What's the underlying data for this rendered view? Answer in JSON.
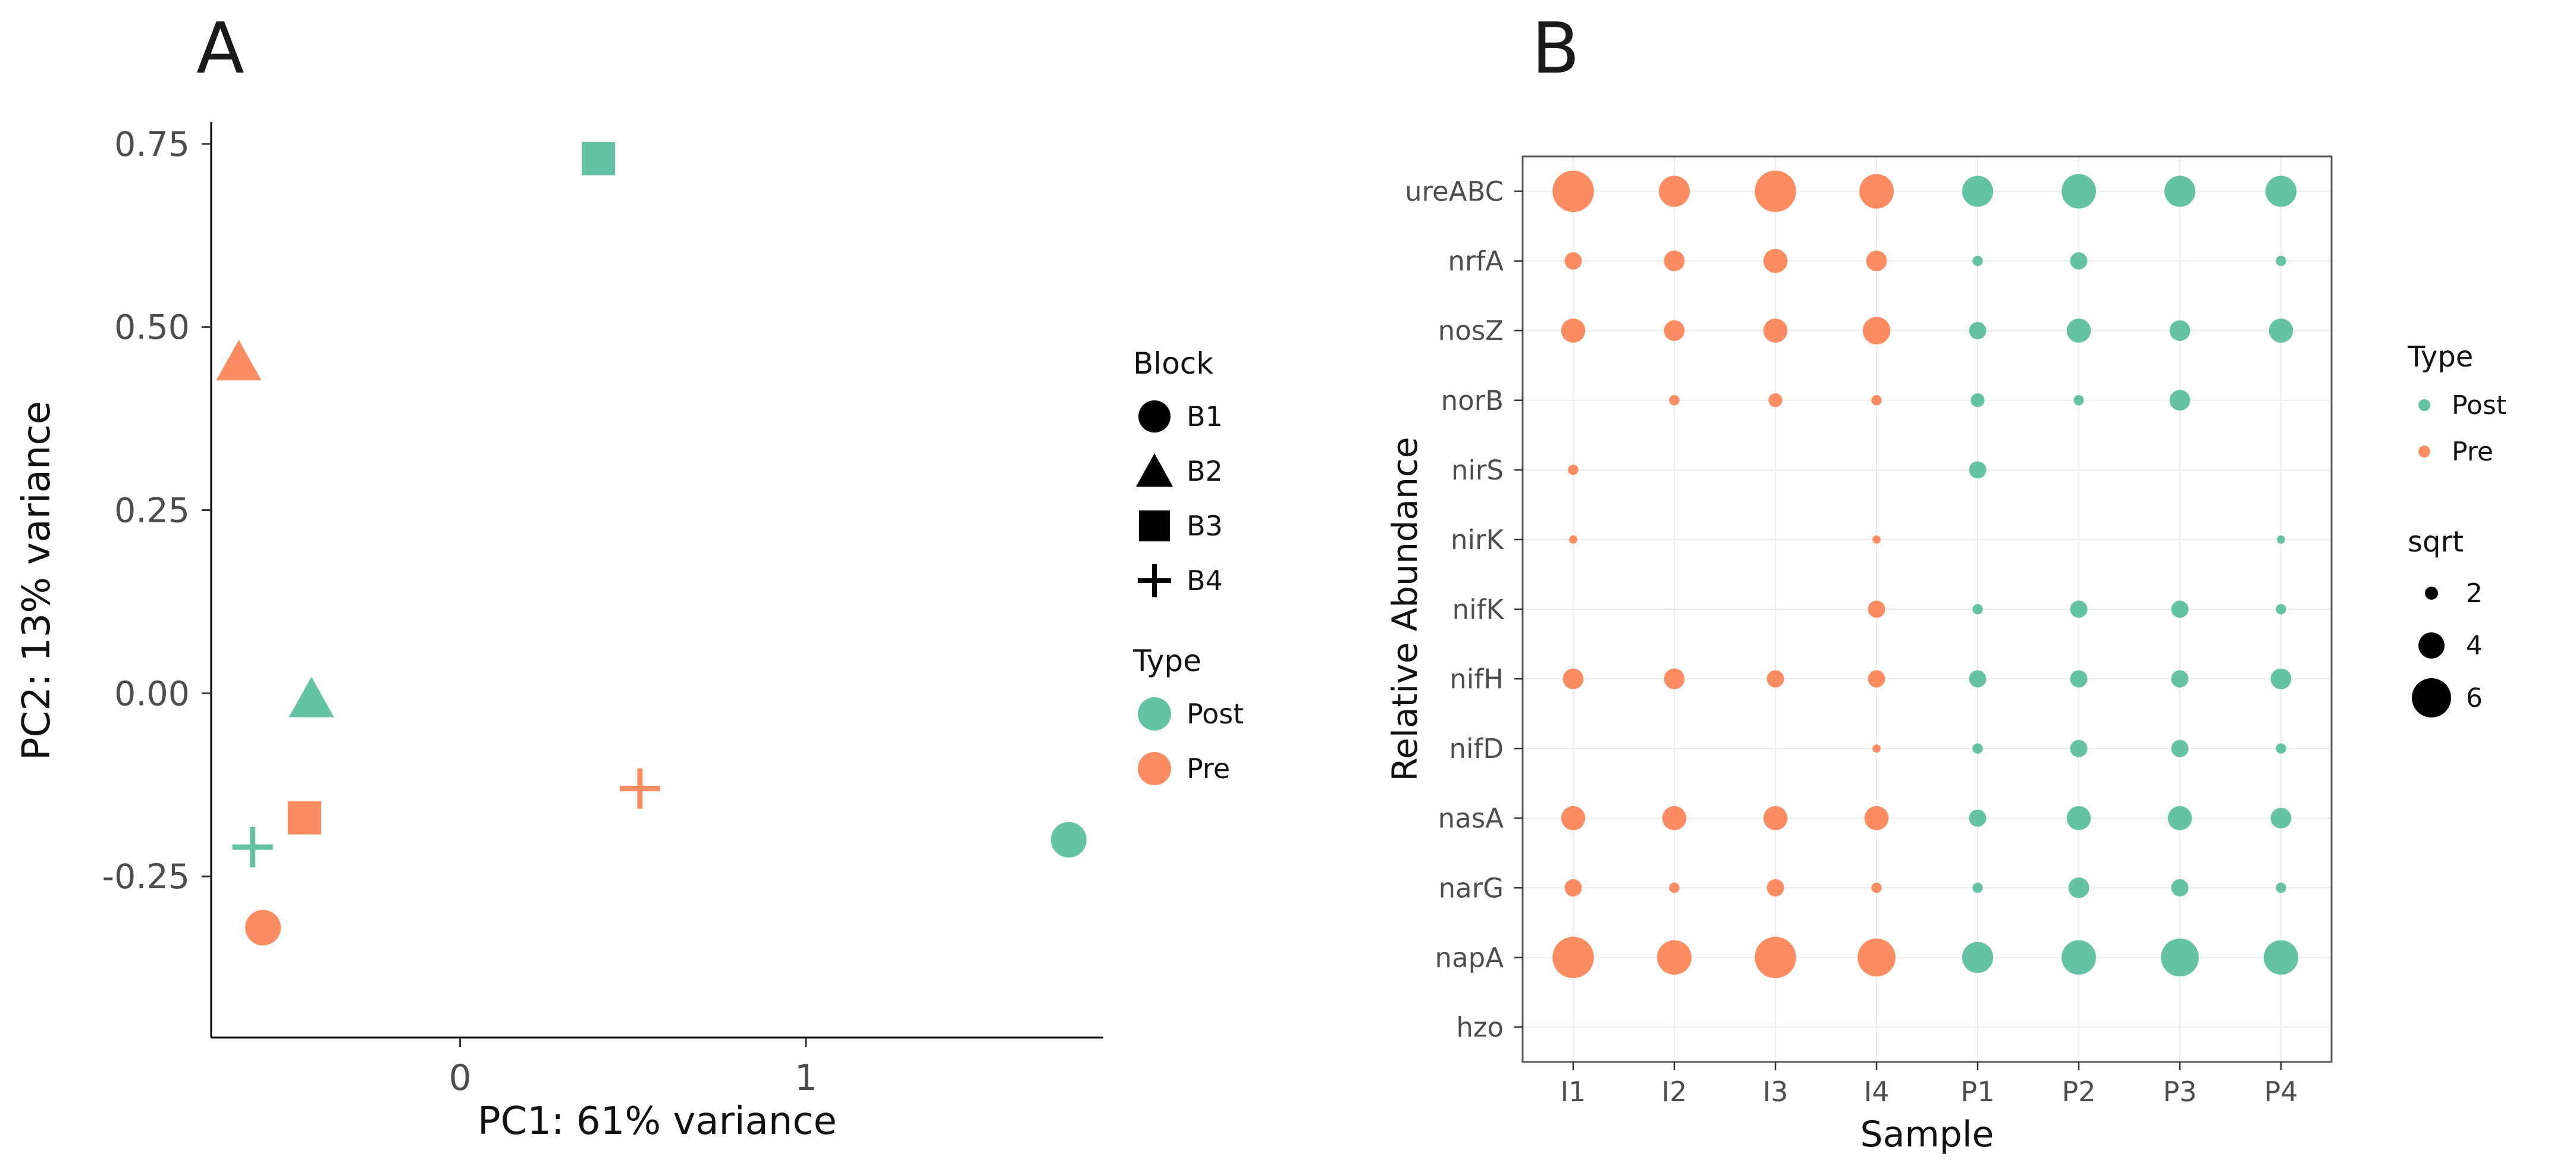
{
  "colors": {
    "post": "#66C2A5",
    "pre": "#FC8D62",
    "marker_black": "#000000",
    "axis_text": "#4d4d4d",
    "axis_line": "#000000",
    "grid": "#ececec",
    "panel_border": "#595959",
    "background": "#ffffff"
  },
  "chart_data": [
    {
      "id": "panel-a",
      "type": "scatter",
      "panel_label": "A",
      "xlabel": "PC1: 61% variance",
      "ylabel": "PC2: 13% variance",
      "xlim": [
        -0.72,
        1.86
      ],
      "ylim": [
        -0.47,
        0.78
      ],
      "xticks": [
        "0",
        "1"
      ],
      "xtick_values": [
        0,
        1
      ],
      "yticks": [
        "0.75",
        "0.50",
        "0.25",
        "0.00",
        "-0.25"
      ],
      "ytick_values": [
        0.75,
        0.5,
        0.25,
        0.0,
        -0.25
      ],
      "grid": false,
      "legend_position": "right",
      "color_by": "Type",
      "shape_by": "Block",
      "points": [
        {
          "x": -0.64,
          "y": 0.45,
          "type": "Pre",
          "block": "B2",
          "shape": "triangle"
        },
        {
          "x": 0.4,
          "y": 0.73,
          "type": "Post",
          "block": "B3",
          "shape": "square"
        },
        {
          "x": -0.43,
          "y": -0.01,
          "type": "Post",
          "block": "B2",
          "shape": "triangle"
        },
        {
          "x": -0.45,
          "y": -0.17,
          "type": "Pre",
          "block": "B3",
          "shape": "square"
        },
        {
          "x": -0.6,
          "y": -0.21,
          "type": "Post",
          "block": "B4",
          "shape": "plus"
        },
        {
          "x": 0.52,
          "y": -0.13,
          "type": "Pre",
          "block": "B4",
          "shape": "plus"
        },
        {
          "x": 1.76,
          "y": -0.2,
          "type": "Post",
          "block": "B1",
          "shape": "circle"
        },
        {
          "x": -0.57,
          "y": -0.32,
          "type": "Pre",
          "block": "B1",
          "shape": "circle"
        }
      ],
      "legends": [
        {
          "title": "Block",
          "items": [
            {
              "label": "B1",
              "shape": "circle"
            },
            {
              "label": "B2",
              "shape": "triangle"
            },
            {
              "label": "B3",
              "shape": "square"
            },
            {
              "label": "B4",
              "shape": "plus"
            }
          ]
        },
        {
          "title": "Type",
          "items": [
            {
              "label": "Post",
              "color": "#66C2A5"
            },
            {
              "label": "Pre",
              "color": "#FC8D62"
            }
          ]
        }
      ]
    },
    {
      "id": "panel-b",
      "type": "bubble",
      "panel_label": "B",
      "xlabel": "Sample",
      "ylabel": "Relative Abundance",
      "grid": true,
      "legend_position": "right",
      "samples": [
        "I1",
        "I2",
        "I3",
        "I4",
        "P1",
        "P2",
        "P3",
        "P4"
      ],
      "sample_types": [
        "Pre",
        "Pre",
        "Pre",
        "Pre",
        "Post",
        "Post",
        "Post",
        "Post"
      ],
      "genes": [
        "ureABC",
        "nrfA",
        "nosZ",
        "norB",
        "nirS",
        "nirK",
        "nifK",
        "nifH",
        "nifD",
        "nasA",
        "narG",
        "napA",
        "hzo"
      ],
      "size_scale_label": "sqrt",
      "sqrt_values": [
        [
          6,
          4.5,
          6,
          5,
          4.5,
          5,
          4.5,
          4.5
        ],
        [
          2.5,
          3,
          3.5,
          3,
          1.5,
          2.5,
          0,
          1.5
        ],
        [
          3.5,
          3,
          3.5,
          4,
          2.5,
          3.5,
          3,
          3.5
        ],
        [
          0,
          1.5,
          2,
          1.5,
          2,
          1.5,
          3,
          0
        ],
        [
          1.5,
          0,
          0,
          0,
          2.5,
          0,
          0,
          0
        ],
        [
          1.2,
          0,
          0,
          1.2,
          0,
          0,
          0,
          1.2
        ],
        [
          0,
          0,
          0,
          2.5,
          1.5,
          2.5,
          2.5,
          1.5
        ],
        [
          3,
          3,
          2.5,
          2.5,
          2.5,
          2.5,
          2.5,
          3
        ],
        [
          0,
          0,
          0,
          1.2,
          1.5,
          2.5,
          2.5,
          1.5
        ],
        [
          3.5,
          3.5,
          3.5,
          3.5,
          2.5,
          3.5,
          3.5,
          3
        ],
        [
          2.5,
          1.5,
          2.5,
          1.5,
          1.5,
          3,
          2.5,
          1.5
        ],
        [
          6,
          5,
          6,
          5.5,
          4.5,
          5,
          5.5,
          5
        ],
        [
          0,
          0,
          0,
          0,
          0,
          0,
          0,
          0
        ]
      ],
      "legends": [
        {
          "title": "Type",
          "items": [
            {
              "label": "Post",
              "color": "#66C2A5"
            },
            {
              "label": "Pre",
              "color": "#FC8D62"
            }
          ]
        },
        {
          "title": "sqrt",
          "items": [
            {
              "label": "2",
              "size": 2
            },
            {
              "label": "4",
              "size": 4
            },
            {
              "label": "6",
              "size": 6
            }
          ]
        }
      ]
    }
  ]
}
